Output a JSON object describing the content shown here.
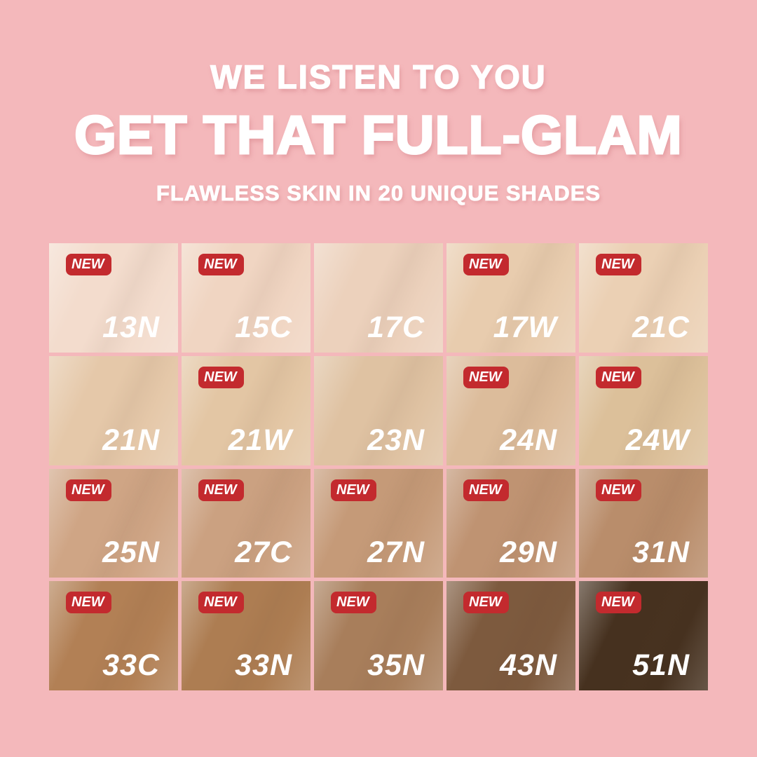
{
  "page": {
    "background": "#F4B8BB"
  },
  "header": {
    "line1": "WE LISTEN TO YOU",
    "line2": "GET THAT FULL-GLAM",
    "line3": "FLAWLESS SKIN IN 20 UNIQUE SHADES",
    "text_color": "#FFFFFF"
  },
  "badge": {
    "label": "NEW",
    "bg": "#C32A2E",
    "text_color": "#FFFFFF"
  },
  "grid": {
    "rows": 4,
    "cols": 5,
    "shade_label_color": "#FFFFFF",
    "shades": [
      {
        "code": "13N",
        "color": "#F3DCCD",
        "new": true
      },
      {
        "code": "15C",
        "color": "#F0D5C2",
        "new": true
      },
      {
        "code": "17C",
        "color": "#ECD1BC",
        "new": false
      },
      {
        "code": "17W",
        "color": "#E8CCAE",
        "new": true
      },
      {
        "code": "21C",
        "color": "#EBD0B4",
        "new": true
      },
      {
        "code": "21N",
        "color": "#E5C8A9",
        "new": false
      },
      {
        "code": "21W",
        "color": "#E3C6A4",
        "new": true
      },
      {
        "code": "23N",
        "color": "#DFC2A2",
        "new": false
      },
      {
        "code": "24N",
        "color": "#DCBC9B",
        "new": true
      },
      {
        "code": "24W",
        "color": "#DCC09A",
        "new": true
      },
      {
        "code": "25N",
        "color": "#CFA585",
        "new": true
      },
      {
        "code": "27C",
        "color": "#CBA181",
        "new": true
      },
      {
        "code": "27N",
        "color": "#C59A78",
        "new": true
      },
      {
        "code": "29N",
        "color": "#BF9372",
        "new": true
      },
      {
        "code": "31N",
        "color": "#B98D6B",
        "new": true
      },
      {
        "code": "33C",
        "color": "#B28055",
        "new": true
      },
      {
        "code": "33N",
        "color": "#AD7D52",
        "new": true
      },
      {
        "code": "35N",
        "color": "#A87E5B",
        "new": true
      },
      {
        "code": "43N",
        "color": "#7D5A3E",
        "new": true
      },
      {
        "code": "51N",
        "color": "#46311F",
        "new": true
      }
    ]
  }
}
